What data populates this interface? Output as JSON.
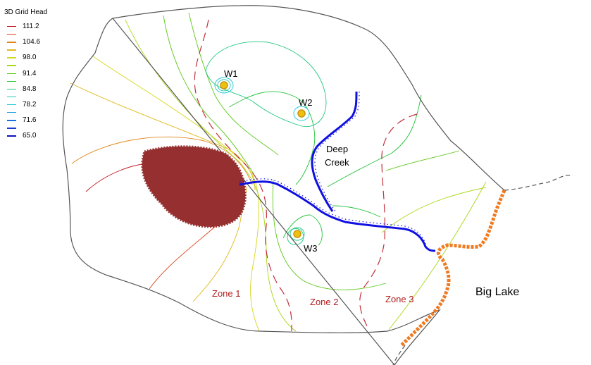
{
  "legend": {
    "title": "3D Grid Head",
    "entries": [
      {
        "label": "111.2",
        "color": "#c0141c"
      },
      {
        "label": "",
        "color": "#d8441a"
      },
      {
        "label": "104.6",
        "color": "#e0861c"
      },
      {
        "label": "",
        "color": "#e0b81c"
      },
      {
        "label": "98.0",
        "color": "#d6d61a"
      },
      {
        "label": "",
        "color": "#a8d818"
      },
      {
        "label": "91.4",
        "color": "#5cc818"
      },
      {
        "label": "",
        "color": "#22c43a"
      },
      {
        "label": "84.8",
        "color": "#20c880"
      },
      {
        "label": "",
        "color": "#20c8b4"
      },
      {
        "label": "78.2",
        "color": "#1cc8d8"
      },
      {
        "label": "",
        "color": "#1c9ce0"
      },
      {
        "label": "71.6",
        "color": "#1c6ce0"
      },
      {
        "label": "",
        "color": "#1c3ad0"
      },
      {
        "label": "65.0",
        "color": "#1010b8"
      }
    ]
  },
  "wells": [
    {
      "label": "W1"
    },
    {
      "label": "W2"
    },
    {
      "label": "W3"
    }
  ],
  "features": {
    "creek": "Deep Creek",
    "creek_line1": "Deep",
    "creek_line2": "Creek",
    "lake": "Big Lake"
  },
  "zones": [
    "Zone 1",
    "Zone 2",
    "Zone 3"
  ],
  "colors": {
    "boundary": "#555555",
    "zone_boundary": "#c0303a",
    "river": "#1010e0",
    "lakeshore": "#f07a20",
    "landfill": "#963030",
    "well_fill": "#f0c010",
    "zone_text": "#b02020"
  }
}
